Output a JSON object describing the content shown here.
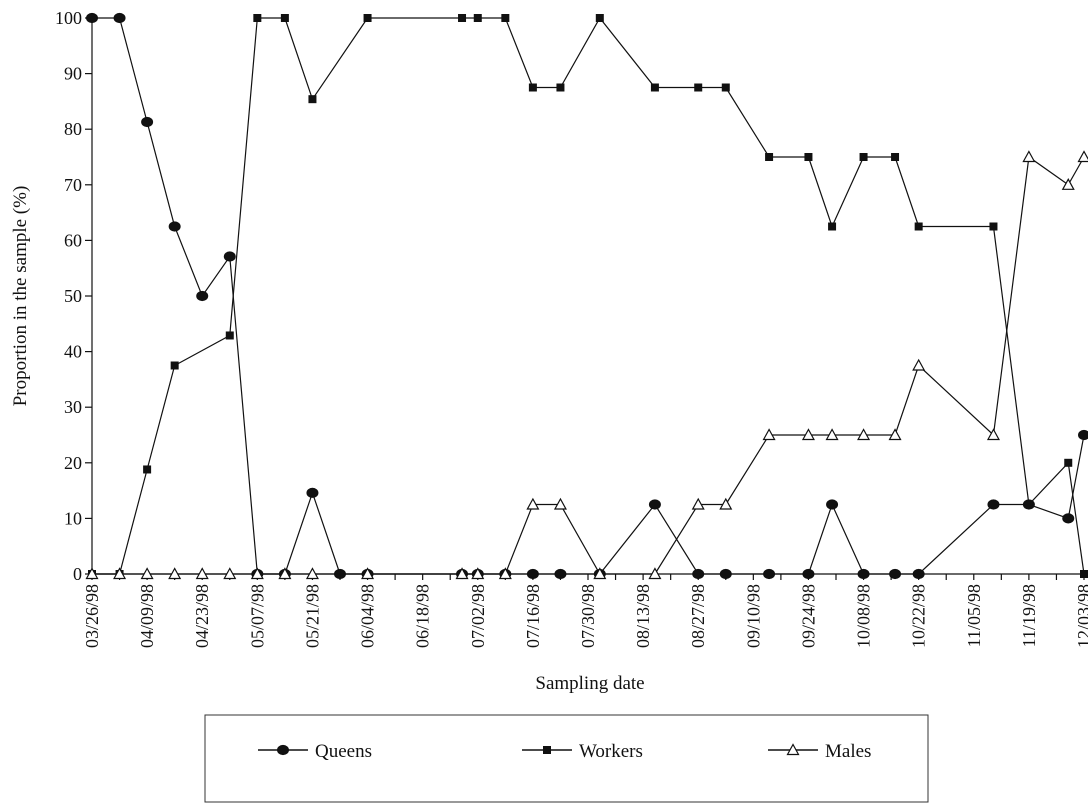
{
  "chart_data": {
    "type": "line",
    "title": "",
    "xlabel": "Sampling date",
    "ylabel": "Proportion in the sample (%)",
    "ylim": [
      0,
      100
    ],
    "xlim": [
      "1998-03-26",
      "1998-12-03"
    ],
    "yticks": [
      0,
      10,
      20,
      30,
      40,
      50,
      60,
      70,
      80,
      90,
      100
    ],
    "xtick_labels": [
      "03/26/98",
      "04/09/98",
      "04/23/98",
      "05/07/98",
      "05/21/98",
      "06/04/98",
      "06/18/98",
      "07/02/98",
      "07/16/98",
      "07/30/98",
      "08/13/98",
      "08/27/98",
      "09/10/98",
      "09/24/98",
      "10/08/98",
      "10/22/98",
      "11/05/98",
      "11/19/98",
      "12/03/98"
    ],
    "grid": false,
    "legend": "bottom",
    "series": [
      {
        "name": "Queens",
        "marker": "circle-filled",
        "x": [
          "1998-03-26",
          "1998-04-02",
          "1998-04-09",
          "1998-04-16",
          "1998-04-23",
          "1998-04-30",
          "1998-05-07",
          "1998-05-14",
          "1998-05-21",
          "1998-05-28",
          "1998-06-04",
          "1998-06-28",
          "1998-07-02",
          "1998-07-09",
          "1998-07-16",
          "1998-07-23",
          "1998-08-02",
          "1998-08-16",
          "1998-08-27",
          "1998-09-03",
          "1998-09-14",
          "1998-09-24",
          "1998-09-30",
          "1998-10-08",
          "1998-10-16",
          "1998-10-22",
          "1998-11-10",
          "1998-11-19",
          "1998-11-29",
          "1998-12-03"
        ],
        "values": [
          100,
          100,
          81.3,
          62.5,
          50,
          57.1,
          0,
          0,
          14.6,
          0,
          0,
          0,
          0,
          0,
          0,
          0,
          0,
          12.5,
          0,
          0,
          0,
          0,
          12.5,
          0,
          0,
          0,
          12.5,
          12.5,
          10,
          25
        ]
      },
      {
        "name": "Workers",
        "marker": "square-filled",
        "x": [
          "1998-03-26",
          "1998-04-02",
          "1998-04-09",
          "1998-04-16",
          "1998-04-30",
          "1998-05-07",
          "1998-05-14",
          "1998-05-21",
          "1998-06-04",
          "1998-06-28",
          "1998-07-02",
          "1998-07-09",
          "1998-07-16",
          "1998-07-23",
          "1998-08-02",
          "1998-08-16",
          "1998-08-27",
          "1998-09-03",
          "1998-09-14",
          "1998-09-24",
          "1998-09-30",
          "1998-10-08",
          "1998-10-16",
          "1998-10-22",
          "1998-11-10",
          "1998-11-19",
          "1998-11-29",
          "1998-12-03"
        ],
        "values": [
          0,
          0,
          18.8,
          37.5,
          42.9,
          100,
          100,
          85.4,
          100,
          100,
          100,
          100,
          87.5,
          87.5,
          100,
          87.5,
          87.5,
          87.5,
          75,
          75,
          62.5,
          75,
          75,
          62.5,
          62.5,
          12.5,
          20,
          0
        ]
      },
      {
        "name": "Males",
        "marker": "triangle-open",
        "x": [
          "1998-03-26",
          "1998-04-02",
          "1998-04-09",
          "1998-04-16",
          "1998-04-23",
          "1998-04-30",
          "1998-05-07",
          "1998-05-14",
          "1998-05-21",
          "1998-06-04",
          "1998-06-28",
          "1998-07-02",
          "1998-07-09",
          "1998-07-16",
          "1998-07-23",
          "1998-08-02",
          "1998-08-16",
          "1998-08-27",
          "1998-09-03",
          "1998-09-14",
          "1998-09-24",
          "1998-09-30",
          "1998-10-08",
          "1998-10-16",
          "1998-10-22",
          "1998-11-10",
          "1998-11-19",
          "1998-11-29",
          "1998-12-03"
        ],
        "values": [
          0,
          0,
          0,
          0,
          0,
          0,
          0,
          0,
          0,
          0,
          0,
          0,
          0,
          12.5,
          12.5,
          0,
          0,
          12.5,
          12.5,
          25,
          25,
          25,
          25,
          25,
          37.5,
          25,
          75,
          70,
          75
        ]
      }
    ]
  }
}
